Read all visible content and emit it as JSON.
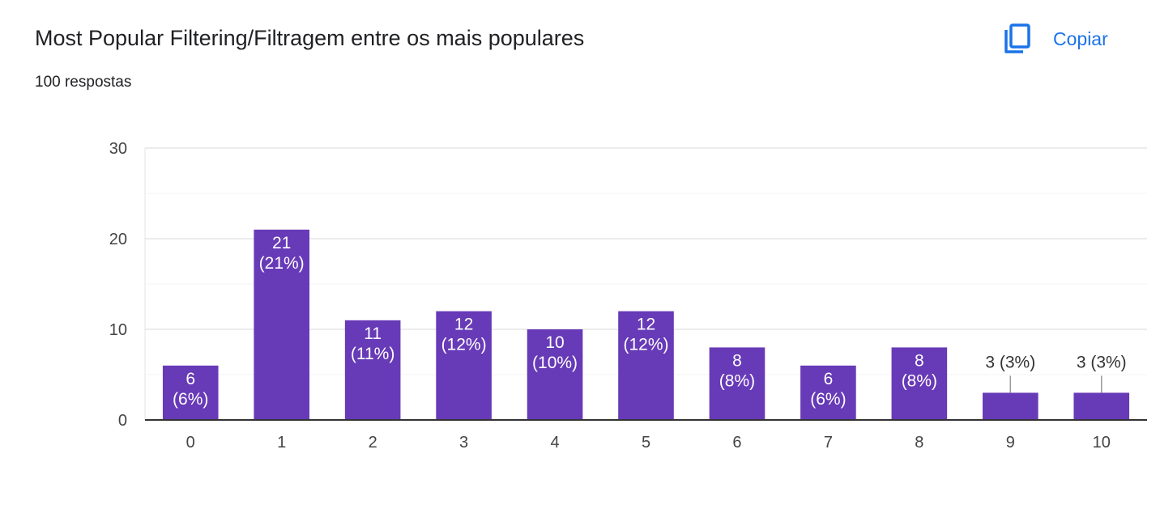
{
  "header": {
    "title": "Most Popular Filtering/Filtragem entre os mais populares",
    "subtitle": "100 respostas",
    "copy_label": "Copiar",
    "copy_icon": "copy-icon",
    "accent_color": "#1a73e8"
  },
  "chart_data": {
    "type": "bar",
    "categories": [
      "0",
      "1",
      "2",
      "3",
      "4",
      "5",
      "6",
      "7",
      "8",
      "9",
      "10"
    ],
    "values": [
      6,
      21,
      11,
      12,
      10,
      12,
      8,
      6,
      8,
      3,
      3
    ],
    "labels": [
      [
        "6",
        "(6%)"
      ],
      [
        "21",
        "(21%)"
      ],
      [
        "11",
        "(11%)"
      ],
      [
        "12",
        "(12%)"
      ],
      [
        "10",
        "(10%)"
      ],
      [
        "12",
        "(12%)"
      ],
      [
        "8",
        "(8%)"
      ],
      [
        "6",
        "(6%)"
      ],
      [
        "8",
        "(8%)"
      ],
      [
        "3 (3%)"
      ],
      [
        "3 (3%)"
      ]
    ],
    "ylim": [
      0,
      30
    ],
    "yticks": [
      0,
      10,
      20,
      30
    ],
    "minor_gridlines": true,
    "bar_color": "#673ab7",
    "xlabel": "",
    "ylabel": ""
  }
}
